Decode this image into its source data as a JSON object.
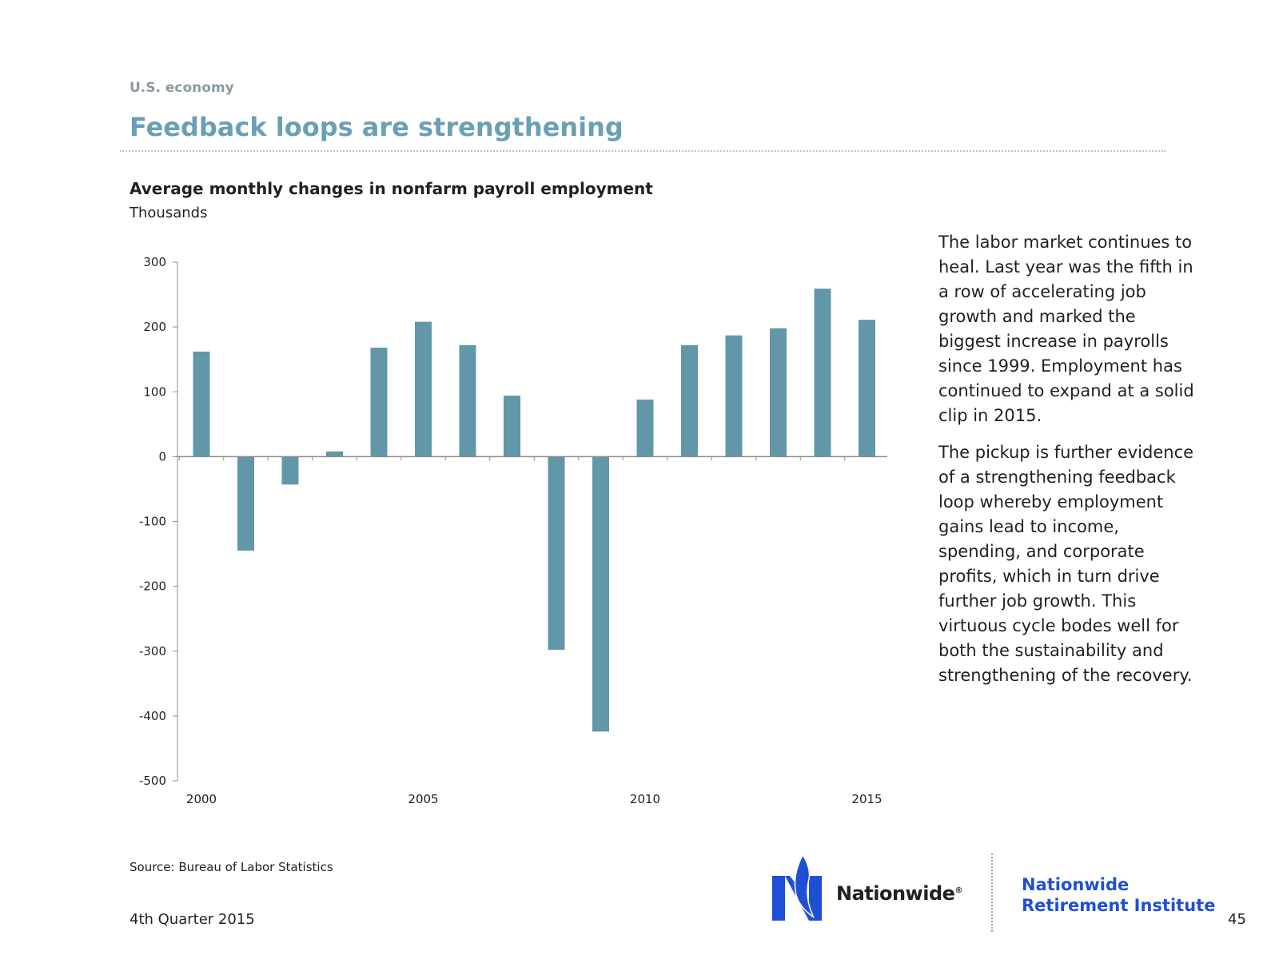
{
  "header": {
    "section": "U.S. economy",
    "title": "Feedback loops are strengthening"
  },
  "chart_data": {
    "type": "bar",
    "title": "Average monthly changes in nonfarm payroll employment",
    "ylabel": "Thousands",
    "xlabel": "",
    "x": [
      2000,
      2001,
      2002,
      2003,
      2004,
      2005,
      2006,
      2007,
      2008,
      2009,
      2010,
      2011,
      2012,
      2013,
      2014,
      2015
    ],
    "values": [
      162,
      -145,
      -43,
      8,
      168,
      208,
      172,
      94,
      -298,
      -424,
      88,
      172,
      187,
      198,
      259,
      211
    ],
    "ylim": [
      -500,
      300
    ],
    "yticks": [
      300,
      200,
      100,
      0,
      -100,
      -200,
      -300,
      -400,
      -500
    ],
    "xtick_labels": [
      "2000",
      "2005",
      "2010",
      "2015"
    ],
    "grid": false,
    "bar_color": "#6197a8"
  },
  "commentary": {
    "paragraph1": "The labor market continues to heal. Last year was the fifth in a row of accelerating job growth and marked the biggest increase in payrolls since 1999. Employment has continued to expand at a solid clip in 2015.",
    "paragraph2": "The pickup is further evidence of a strengthening feedback loop whereby employment gains lead to income, spending, and corporate profits, which in turn drive further job growth. This virtuous cycle bodes well for both the sustainability and strengthening of the recovery."
  },
  "footer": {
    "source": "Source: Bureau of Labor Statistics",
    "date": "4th Quarter 2015",
    "page_number": "45",
    "brand": "Nationwide",
    "institute_line1": "Nationwide",
    "institute_line2": "Retirement Institute"
  },
  "colors": {
    "title": "#6a9fb5",
    "institute": "#1f4fd6",
    "logo": "#1f4fd6"
  },
  "icons": {
    "logo": "eagle-logo-icon"
  }
}
